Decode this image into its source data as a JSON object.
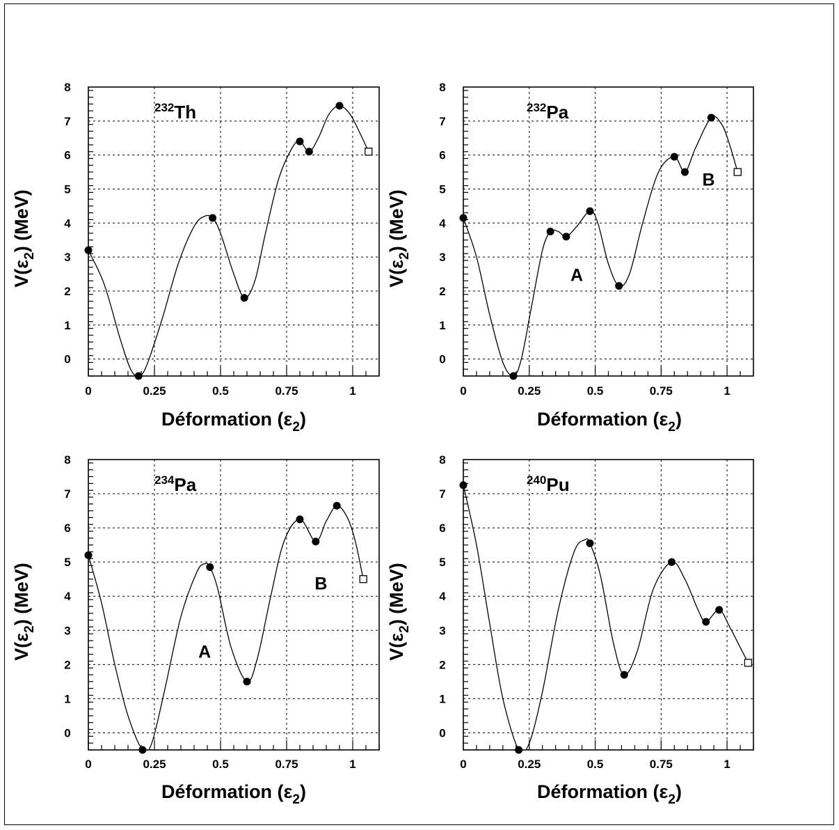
{
  "chart_data": [
    {
      "type": "line",
      "nucleus": {
        "mass": "232",
        "element": "Th"
      },
      "xlabel": "Déformation (ε2)",
      "ylabel": "V(ε2) (MeV)",
      "xlim": [
        0,
        1.1
      ],
      "ylim": [
        -0.5,
        8
      ],
      "xticks": [
        0,
        0.25,
        0.5,
        0.75,
        1
      ],
      "xtick_labels": [
        "0",
        "0.25",
        "0.5",
        "0.75",
        "1"
      ],
      "yticks": [
        0,
        1,
        2,
        3,
        4,
        5,
        6,
        7,
        8
      ],
      "ytick_labels": [
        "0",
        "1",
        "2",
        "3",
        "4",
        "5",
        "6",
        "7",
        "8"
      ],
      "grid": true,
      "points": [
        {
          "x": 0,
          "y": 3.2
        },
        {
          "x": 0.19,
          "y": -0.5
        },
        {
          "x": 0.47,
          "y": 4.15
        },
        {
          "x": 0.59,
          "y": 1.8
        },
        {
          "x": 0.8,
          "y": 6.4
        },
        {
          "x": 0.835,
          "y": 6.1
        },
        {
          "x": 0.95,
          "y": 7.45
        }
      ],
      "endpoint": {
        "x": 1.06,
        "y": 6.1
      },
      "curve": [
        [
          0,
          3.2
        ],
        [
          0.06,
          2.2
        ],
        [
          0.12,
          0.6
        ],
        [
          0.16,
          -0.3
        ],
        [
          0.19,
          -0.5
        ],
        [
          0.22,
          -0.2
        ],
        [
          0.28,
          1.2
        ],
        [
          0.34,
          2.8
        ],
        [
          0.4,
          3.9
        ],
        [
          0.44,
          4.2
        ],
        [
          0.47,
          4.15
        ],
        [
          0.5,
          3.7
        ],
        [
          0.55,
          2.5
        ],
        [
          0.59,
          1.8
        ],
        [
          0.63,
          2.3
        ],
        [
          0.67,
          3.7
        ],
        [
          0.72,
          5.3
        ],
        [
          0.77,
          6.2
        ],
        [
          0.8,
          6.4
        ],
        [
          0.835,
          6.1
        ],
        [
          0.87,
          6.5
        ],
        [
          0.91,
          7.2
        ],
        [
          0.95,
          7.45
        ],
        [
          0.99,
          7.2
        ],
        [
          1.03,
          6.6
        ],
        [
          1.06,
          6.1
        ]
      ],
      "annotations": []
    },
    {
      "type": "line",
      "nucleus": {
        "mass": "232",
        "element": "Pa"
      },
      "xlabel": "Déformation (ε2)",
      "ylabel": "V(ε2) (MeV)",
      "xlim": [
        0,
        1.1
      ],
      "ylim": [
        -0.5,
        8
      ],
      "xticks": [
        0,
        0.25,
        0.5,
        0.75,
        1
      ],
      "xtick_labels": [
        "0",
        "0.25",
        "0.5",
        "0.75",
        "1"
      ],
      "yticks": [
        0,
        1,
        2,
        3,
        4,
        5,
        6,
        7,
        8
      ],
      "ytick_labels": [
        "0",
        "1",
        "2",
        "3",
        "4",
        "5",
        "6",
        "7",
        "8"
      ],
      "grid": true,
      "points": [
        {
          "x": 0,
          "y": 4.15
        },
        {
          "x": 0.19,
          "y": -0.5
        },
        {
          "x": 0.33,
          "y": 3.75
        },
        {
          "x": 0.39,
          "y": 3.6
        },
        {
          "x": 0.48,
          "y": 4.35
        },
        {
          "x": 0.59,
          "y": 2.15
        },
        {
          "x": 0.8,
          "y": 5.95
        },
        {
          "x": 0.84,
          "y": 5.5
        },
        {
          "x": 0.94,
          "y": 7.1
        }
      ],
      "endpoint": {
        "x": 1.04,
        "y": 5.5
      },
      "curve": [
        [
          0,
          4.15
        ],
        [
          0.05,
          3.0
        ],
        [
          0.1,
          1.3
        ],
        [
          0.15,
          -0.1
        ],
        [
          0.19,
          -0.5
        ],
        [
          0.22,
          0.0
        ],
        [
          0.26,
          1.6
        ],
        [
          0.3,
          3.2
        ],
        [
          0.33,
          3.75
        ],
        [
          0.36,
          3.75
        ],
        [
          0.39,
          3.6
        ],
        [
          0.43,
          3.9
        ],
        [
          0.48,
          4.35
        ],
        [
          0.51,
          4.0
        ],
        [
          0.55,
          2.8
        ],
        [
          0.59,
          2.15
        ],
        [
          0.63,
          2.5
        ],
        [
          0.68,
          4.0
        ],
        [
          0.74,
          5.5
        ],
        [
          0.8,
          5.95
        ],
        [
          0.84,
          5.5
        ],
        [
          0.88,
          6.2
        ],
        [
          0.94,
          7.1
        ],
        [
          0.98,
          6.9
        ],
        [
          1.01,
          6.3
        ],
        [
          1.04,
          5.5
        ]
      ],
      "annotations": [
        {
          "text": "A",
          "x": 0.43,
          "y": 2.3
        },
        {
          "text": "B",
          "x": 0.93,
          "y": 5.1
        }
      ]
    },
    {
      "type": "line",
      "nucleus": {
        "mass": "234",
        "element": "Pa"
      },
      "xlabel": "Déformation (ε2)",
      "ylabel": "V(ε2) (MeV)",
      "xlim": [
        0,
        1.1
      ],
      "ylim": [
        -0.5,
        8
      ],
      "xticks": [
        0,
        0.25,
        0.5,
        0.75,
        1
      ],
      "xtick_labels": [
        "0",
        "0.25",
        "0.5",
        "0.75",
        "1"
      ],
      "yticks": [
        0,
        1,
        2,
        3,
        4,
        5,
        6,
        7,
        8
      ],
      "ytick_labels": [
        "0",
        "1",
        "2",
        "3",
        "4",
        "5",
        "6",
        "7",
        "8"
      ],
      "grid": true,
      "points": [
        {
          "x": 0,
          "y": 5.2
        },
        {
          "x": 0.205,
          "y": -0.5
        },
        {
          "x": 0.46,
          "y": 4.85
        },
        {
          "x": 0.6,
          "y": 1.5
        },
        {
          "x": 0.8,
          "y": 6.25
        },
        {
          "x": 0.86,
          "y": 5.6
        },
        {
          "x": 0.94,
          "y": 6.65
        }
      ],
      "endpoint": {
        "x": 1.04,
        "y": 4.5
      },
      "curve": [
        [
          0,
          5.2
        ],
        [
          0.05,
          3.8
        ],
        [
          0.1,
          2.0
        ],
        [
          0.15,
          0.5
        ],
        [
          0.205,
          -0.5
        ],
        [
          0.24,
          -0.3
        ],
        [
          0.29,
          1.3
        ],
        [
          0.35,
          3.4
        ],
        [
          0.41,
          4.7
        ],
        [
          0.44,
          4.95
        ],
        [
          0.46,
          4.85
        ],
        [
          0.49,
          4.2
        ],
        [
          0.54,
          2.5
        ],
        [
          0.6,
          1.5
        ],
        [
          0.64,
          2.2
        ],
        [
          0.69,
          4.0
        ],
        [
          0.74,
          5.6
        ],
        [
          0.8,
          6.25
        ],
        [
          0.86,
          5.6
        ],
        [
          0.9,
          6.2
        ],
        [
          0.94,
          6.65
        ],
        [
          0.98,
          6.3
        ],
        [
          1.01,
          5.6
        ],
        [
          1.04,
          4.5
        ]
      ],
      "annotations": [
        {
          "text": "A",
          "x": 0.44,
          "y": 2.2
        },
        {
          "text": "B",
          "x": 0.88,
          "y": 4.2
        }
      ]
    },
    {
      "type": "line",
      "nucleus": {
        "mass": "240",
        "element": "Pu"
      },
      "xlabel": "Déformation (ε2)",
      "ylabel": "V(ε2) (MeV)",
      "xlim": [
        0,
        1.1
      ],
      "ylim": [
        -0.5,
        8
      ],
      "xticks": [
        0,
        0.25,
        0.5,
        0.75,
        1
      ],
      "xtick_labels": [
        "0",
        "0.25",
        "0.5",
        "0.75",
        "1"
      ],
      "yticks": [
        0,
        1,
        2,
        3,
        4,
        5,
        6,
        7,
        8
      ],
      "ytick_labels": [
        "0",
        "1",
        "2",
        "3",
        "4",
        "5",
        "6",
        "7",
        "8"
      ],
      "grid": true,
      "points": [
        {
          "x": 0,
          "y": 7.25
        },
        {
          "x": 0.21,
          "y": -0.5
        },
        {
          "x": 0.48,
          "y": 5.55
        },
        {
          "x": 0.61,
          "y": 1.7
        },
        {
          "x": 0.79,
          "y": 5.0
        },
        {
          "x": 0.92,
          "y": 3.25
        },
        {
          "x": 0.97,
          "y": 3.6
        }
      ],
      "endpoint": {
        "x": 1.08,
        "y": 2.05
      },
      "curve": [
        [
          0,
          7.25
        ],
        [
          0.05,
          5.5
        ],
        [
          0.1,
          3.2
        ],
        [
          0.15,
          1.0
        ],
        [
          0.21,
          -0.5
        ],
        [
          0.25,
          -0.3
        ],
        [
          0.3,
          1.2
        ],
        [
          0.36,
          3.6
        ],
        [
          0.42,
          5.3
        ],
        [
          0.46,
          5.65
        ],
        [
          0.48,
          5.55
        ],
        [
          0.52,
          4.6
        ],
        [
          0.57,
          2.6
        ],
        [
          0.61,
          1.7
        ],
        [
          0.66,
          2.4
        ],
        [
          0.72,
          4.2
        ],
        [
          0.79,
          5.0
        ],
        [
          0.84,
          4.5
        ],
        [
          0.89,
          3.6
        ],
        [
          0.92,
          3.25
        ],
        [
          0.97,
          3.6
        ],
        [
          1.01,
          3.1
        ],
        [
          1.05,
          2.5
        ],
        [
          1.08,
          2.05
        ]
      ],
      "annotations": []
    }
  ]
}
